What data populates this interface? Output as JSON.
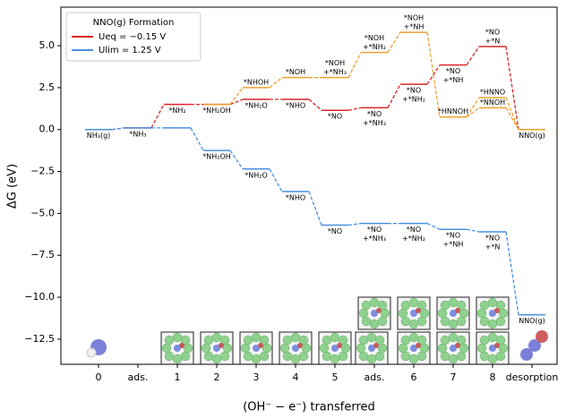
{
  "chart_data": {
    "type": "energy-diagram",
    "y_label": "ΔG (eV)",
    "x_label": "(OH⁻ − e⁻) transferred",
    "categories": [
      "0",
      "ads.",
      "1",
      "2",
      "3",
      "4",
      "5",
      "ads.",
      "6",
      "7",
      "8",
      "desorption"
    ],
    "ylim": [
      -14,
      7.3
    ],
    "yticks": [
      {
        "value": 5,
        "label": "5.0"
      },
      {
        "value": 2.5,
        "label": "2.5"
      },
      {
        "value": 0,
        "label": "0.0"
      },
      {
        "value": -2.5,
        "label": "−2.5"
      },
      {
        "value": -5,
        "label": "−5.0"
      },
      {
        "value": -7.5,
        "label": "−7.5"
      },
      {
        "value": -10,
        "label": "−10.0"
      },
      {
        "value": -12.5,
        "label": "−12.5"
      }
    ],
    "legend_title": "NNO(g) Formation",
    "legend": "upper left",
    "series": [
      {
        "name": "Ueq = −0.15 V",
        "color": "#d62728",
        "values": [
          0,
          0.1,
          1.5,
          1.5,
          1.8,
          1.8,
          1.15,
          1.3,
          2.7,
          3.85,
          4.95,
          0
        ],
        "labels": [
          [
            "NH₃(g)"
          ],
          [
            "*NH₃"
          ],
          [
            "*NH₂"
          ],
          [
            "*NH₂OH"
          ],
          [
            "*NH₂O"
          ],
          [
            "*NHO"
          ],
          [
            "*NO"
          ],
          [
            "*NO",
            "+*NH₃"
          ],
          [
            "*NO",
            "+*NH₂"
          ],
          [
            "*NO",
            "+*NH"
          ],
          [
            "*NO",
            "+*N"
          ],
          [
            "NNO(g)"
          ]
        ]
      },
      {
        "name": "Ulim = 1.25 V",
        "color": "#4a90e2",
        "values": [
          0,
          0.1,
          0.1,
          -1.25,
          -2.35,
          -3.7,
          -5.7,
          -5.6,
          -5.6,
          -5.95,
          -6.1,
          -11.05
        ],
        "labels": [
          null,
          null,
          null,
          [
            "*NH₂OH"
          ],
          [
            "*NH₂O"
          ],
          [
            "*NHO"
          ],
          [
            "*NO"
          ],
          [
            "*NO",
            "+*NH₃"
          ],
          [
            "*NO",
            "+*NH₂"
          ],
          [
            "*NO",
            "+*NH"
          ],
          [
            "*NO",
            "+*N"
          ],
          [
            "NNO(g)"
          ]
        ]
      },
      {
        "color": "#f0a030",
        "values": [
          null,
          null,
          null,
          1.5,
          2.5,
          3.1,
          3.1,
          4.6,
          5.8,
          0.75,
          1.3,
          0
        ],
        "labels": [
          null,
          null,
          null,
          null,
          [
            "*NHOH"
          ],
          [
            "*NOH"
          ],
          [
            "*NOH",
            "+*NH₃"
          ],
          [
            "*NOH",
            "+*NH₂"
          ],
          [
            "*NOH",
            "+*NH"
          ],
          [
            "*HNNOH"
          ],
          [
            "*NNOH"
          ],
          null
        ]
      },
      {
        "color": "#f0a030",
        "values": [
          null,
          null,
          null,
          null,
          null,
          null,
          null,
          null,
          null,
          0.75,
          1.9,
          0
        ],
        "labels": [
          null,
          null,
          null,
          null,
          null,
          null,
          null,
          null,
          null,
          null,
          [
            "*HNNO"
          ],
          null
        ]
      }
    ]
  }
}
